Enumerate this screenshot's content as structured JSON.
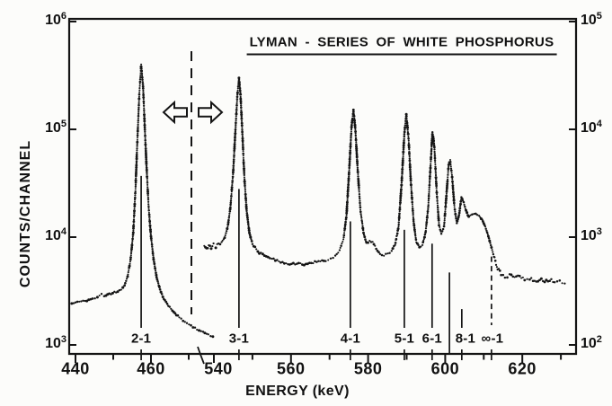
{
  "title": "LYMAN - SERIES OF WHITE PHOSPHORUS",
  "axes": {
    "y_left_label": "COUNTS/CHANNEL",
    "x_label": "ENERGY (keV)",
    "log_base_label": "10",
    "y_left_exponents": [
      6,
      5,
      4,
      3
    ],
    "y_right_exponents": [
      5,
      4,
      3,
      2
    ],
    "x_major_ticks_left_kev": [
      440,
      460
    ],
    "x_minor_ticks_left_kev": [
      450,
      470
    ],
    "x_major_ticks_right_kev": [
      540,
      560,
      580,
      600,
      620
    ],
    "x_minor_ticks_right_kev": [
      550,
      570,
      590,
      610,
      630
    ]
  },
  "annotations": {
    "scale_break": {
      "description": "dashed vertical line with outlined block arrows marking the energy-scale break; left of it counts read on the left axis, right of it on the right axis",
      "left_icon": "left-block-arrow-icon",
      "right_icon": "right-block-arrow-icon"
    },
    "axis_break_mark": "diagonal squiggle on energy axis between 470 and 540 keV"
  },
  "peak_markers": [
    {
      "label": "2-1",
      "energy_kev": 457.4,
      "axis": "left",
      "marker_top_counts": 37000,
      "style": "solid"
    },
    {
      "label": "3-1",
      "energy_kev": 546.5,
      "axis": "right",
      "marker_top_counts": 2800,
      "style": "solid"
    },
    {
      "label": "4-1",
      "energy_kev": 575.4,
      "axis": "right",
      "marker_top_counts": 1400,
      "style": "solid"
    },
    {
      "label": "5-1",
      "energy_kev": 589.4,
      "axis": "right",
      "marker_top_counts": 1170,
      "style": "solid"
    },
    {
      "label": "6-1",
      "energy_kev": 596.6,
      "axis": "right",
      "marker_top_counts": 870,
      "style": "solid"
    },
    {
      "label": "",
      "energy_kev": 601.1,
      "axis": "right",
      "marker_top_counts": 470,
      "style": "solid",
      "full_height": true
    },
    {
      "label": "8-1",
      "energy_kev": 604.3,
      "axis": "right",
      "marker_top_counts": 215,
      "style": "solid",
      "label_dx": 4
    },
    {
      "label": "∞-1",
      "energy_kev": 612.0,
      "axis": "right",
      "marker_top_counts": 660,
      "style": "dashed",
      "label_dx": 1
    }
  ],
  "chart_data": {
    "type": "scatter",
    "title": "LYMAN - SERIES OF WHITE PHOSPHORUS",
    "xlabel": "ENERGY (keV)",
    "ylabel": "COUNTS/CHANNEL",
    "x_scale": "linear with scale break between 470 and 540 keV",
    "y_scale": "log",
    "y_left_range": [
      1000,
      1000000
    ],
    "y_right_range": [
      100,
      100000
    ],
    "x_left_range_kev": [
      440,
      476.5
    ],
    "x_right_range_kev": [
      537.5,
      631
    ],
    "grid": false,
    "legend": false,
    "series": [
      {
        "name": "2-1 line segment (read on left counts axis)",
        "axis": "left",
        "points": [
          [
            439,
            2400
          ],
          [
            440,
            2480
          ],
          [
            441.5,
            2530
          ],
          [
            443,
            2600
          ],
          [
            444.5,
            2680
          ],
          [
            445.8,
            2760
          ],
          [
            446.9,
            2950
          ],
          [
            447.6,
            2840
          ],
          [
            448.5,
            2900
          ],
          [
            449.4,
            2980
          ],
          [
            450.3,
            3060
          ],
          [
            451.2,
            3140
          ],
          [
            452.1,
            3260
          ],
          [
            453,
            3560
          ],
          [
            453.8,
            4300
          ],
          [
            454.6,
            6200
          ],
          [
            455.3,
            11000
          ],
          [
            455.9,
            28000
          ],
          [
            456.4,
            80000
          ],
          [
            456.9,
            210000
          ],
          [
            457.4,
            400000
          ],
          [
            457.9,
            250000
          ],
          [
            458.4,
            95000
          ],
          [
            458.9,
            40000
          ],
          [
            459.4,
            18500
          ],
          [
            460,
            10200
          ],
          [
            460.7,
            6200
          ],
          [
            461.5,
            4250
          ],
          [
            462.4,
            3250
          ],
          [
            463.4,
            2700
          ],
          [
            464.6,
            2320
          ],
          [
            466,
            2020
          ],
          [
            467.5,
            1800
          ],
          [
            469,
            1640
          ],
          [
            470.6,
            1510
          ],
          [
            472.2,
            1400
          ],
          [
            473.8,
            1310
          ],
          [
            475.2,
            1240
          ],
          [
            476.4,
            1180
          ]
        ]
      },
      {
        "name": "3-1 to series limit segment (read on right counts axis)",
        "axis": "right",
        "points": [
          [
            537.5,
            830
          ],
          [
            538.1,
            790
          ],
          [
            538.7,
            845
          ],
          [
            539.3,
            800
          ],
          [
            539.9,
            855
          ],
          [
            540.5,
            815
          ],
          [
            541.2,
            860
          ],
          [
            542,
            900
          ],
          [
            542.8,
            990
          ],
          [
            543.6,
            1250
          ],
          [
            544.3,
            1900
          ],
          [
            545,
            4000
          ],
          [
            545.6,
            10000
          ],
          [
            546.1,
            21000
          ],
          [
            546.5,
            30000
          ],
          [
            546.9,
            21000
          ],
          [
            547.4,
            9000
          ],
          [
            547.9,
            3600
          ],
          [
            548.5,
            1750
          ],
          [
            549.2,
            1100
          ],
          [
            550,
            870
          ],
          [
            551,
            760
          ],
          [
            552.2,
            700
          ],
          [
            553.6,
            665
          ],
          [
            555,
            635
          ],
          [
            556.4,
            610
          ],
          [
            557.8,
            580
          ],
          [
            559.2,
            555
          ],
          [
            560.6,
            565
          ],
          [
            562,
            575
          ],
          [
            563.4,
            560
          ],
          [
            564.8,
            580
          ],
          [
            566.2,
            585
          ],
          [
            567.6,
            595
          ],
          [
            569,
            610
          ],
          [
            570.3,
            635
          ],
          [
            571.5,
            670
          ],
          [
            572.6,
            760
          ],
          [
            573.6,
            950
          ],
          [
            574.4,
            1600
          ],
          [
            575.1,
            4200
          ],
          [
            575.7,
            10500
          ],
          [
            576.2,
            15200
          ],
          [
            576.7,
            10000
          ],
          [
            577.3,
            4200
          ],
          [
            578,
            1800
          ],
          [
            578.8,
            1100
          ],
          [
            579.6,
            880
          ],
          [
            580.4,
            920
          ],
          [
            581.2,
            890
          ],
          [
            582.1,
            780
          ],
          [
            583.1,
            700
          ],
          [
            584.1,
            680
          ],
          [
            585.1,
            700
          ],
          [
            586.1,
            740
          ],
          [
            587,
            850
          ],
          [
            587.9,
            1250
          ],
          [
            588.7,
            3200
          ],
          [
            589.4,
            9000
          ],
          [
            589.9,
            13800
          ],
          [
            590.5,
            8200
          ],
          [
            591.1,
            3200
          ],
          [
            591.8,
            1400
          ],
          [
            592.5,
            900
          ],
          [
            593.3,
            800
          ],
          [
            594.1,
            850
          ],
          [
            594.9,
            1100
          ],
          [
            595.6,
            1900
          ],
          [
            596.2,
            4600
          ],
          [
            596.7,
            9400
          ],
          [
            597.2,
            6800
          ],
          [
            597.8,
            2600
          ],
          [
            598.4,
            1300
          ],
          [
            599,
            1080
          ],
          [
            599.7,
            1250
          ],
          [
            600.3,
            2400
          ],
          [
            600.9,
            4700
          ],
          [
            601.3,
            5200
          ],
          [
            601.8,
            3600
          ],
          [
            602.4,
            1900
          ],
          [
            603,
            1350
          ],
          [
            603.6,
            1600
          ],
          [
            604.2,
            2350
          ],
          [
            604.8,
            2100
          ],
          [
            605.4,
            1750
          ],
          [
            606.1,
            1550
          ],
          [
            607,
            1600
          ],
          [
            607.9,
            1650
          ],
          [
            608.8,
            1600
          ],
          [
            609.6,
            1450
          ],
          [
            610.4,
            1250
          ],
          [
            611.2,
            1020
          ],
          [
            612,
            800
          ],
          [
            612.8,
            630
          ],
          [
            613.6,
            520
          ],
          [
            614.5,
            455
          ],
          [
            615.5,
            430
          ],
          [
            616.7,
            445
          ],
          [
            618,
            415
          ],
          [
            619.3,
            435
          ],
          [
            620.6,
            405
          ],
          [
            621.9,
            420
          ],
          [
            623.2,
            390
          ],
          [
            624.5,
            410
          ],
          [
            625.8,
            380
          ],
          [
            627.1,
            400
          ],
          [
            628.4,
            375
          ],
          [
            629.7,
            390
          ],
          [
            631,
            380
          ]
        ]
      }
    ]
  }
}
